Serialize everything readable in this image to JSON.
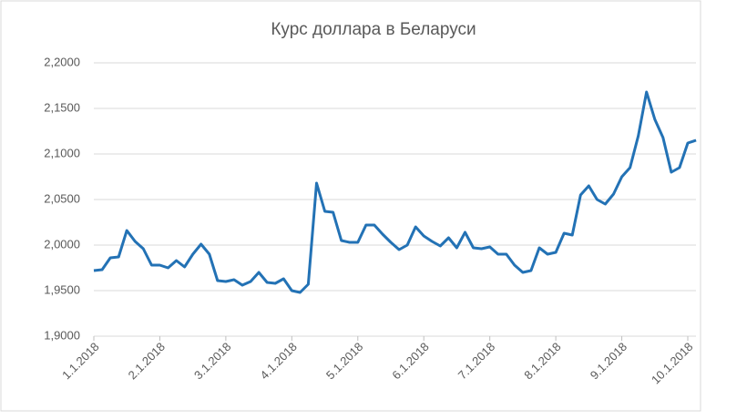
{
  "chart_data": {
    "type": "line",
    "title": "Курс доллара в Беларуси",
    "categories": [
      "1.1.2018",
      null,
      null,
      null,
      null,
      null,
      null,
      null,
      "2.1.2018",
      null,
      null,
      null,
      null,
      null,
      null,
      null,
      "3.1.2018",
      null,
      null,
      null,
      null,
      null,
      null,
      null,
      "4.1.2018",
      null,
      null,
      null,
      null,
      null,
      null,
      null,
      "5.1.2018",
      null,
      null,
      null,
      null,
      null,
      null,
      null,
      "6.1.2018",
      null,
      null,
      null,
      null,
      null,
      null,
      null,
      "7.1.2018",
      null,
      null,
      null,
      null,
      null,
      null,
      null,
      "8.1.2018",
      null,
      null,
      null,
      null,
      null,
      null,
      null,
      "9.1.2018",
      null,
      null,
      null,
      null,
      null,
      null,
      null,
      "10.1.2018",
      null
    ],
    "values": [
      1.972,
      1.973,
      1.986,
      1.987,
      2.016,
      2.004,
      1.996,
      1.978,
      1.978,
      1.975,
      1.983,
      1.976,
      1.99,
      2.001,
      1.99,
      1.961,
      1.96,
      1.962,
      1.956,
      1.96,
      1.97,
      1.959,
      1.958,
      1.963,
      1.95,
      1.948,
      1.957,
      2.068,
      2.037,
      2.036,
      2.005,
      2.003,
      2.003,
      2.022,
      2.022,
      2.012,
      2.003,
      1.995,
      2.0,
      2.02,
      2.01,
      2.004,
      1.999,
      2.008,
      1.997,
      2.014,
      1.997,
      1.996,
      1.998,
      1.99,
      1.99,
      1.978,
      1.97,
      1.972,
      1.997,
      1.99,
      1.992,
      2.013,
      2.011,
      2.055,
      2.065,
      2.05,
      2.045,
      2.056,
      2.075,
      2.085,
      2.12,
      2.168,
      2.138,
      2.118,
      2.08,
      2.085,
      2.112,
      2.115
    ],
    "color": "#2372b5",
    "ylim": [
      1.9,
      2.2
    ],
    "yticks": [
      {
        "value": 1.9,
        "label": "1,9000"
      },
      {
        "value": 1.95,
        "label": "1,9500"
      },
      {
        "value": 2.0,
        "label": "2,0000"
      },
      {
        "value": 2.05,
        "label": "2,0500"
      },
      {
        "value": 2.1,
        "label": "2,1000"
      },
      {
        "value": 2.15,
        "label": "2,1500"
      },
      {
        "value": 2.2,
        "label": "2,2000"
      }
    ],
    "grid": true
  }
}
